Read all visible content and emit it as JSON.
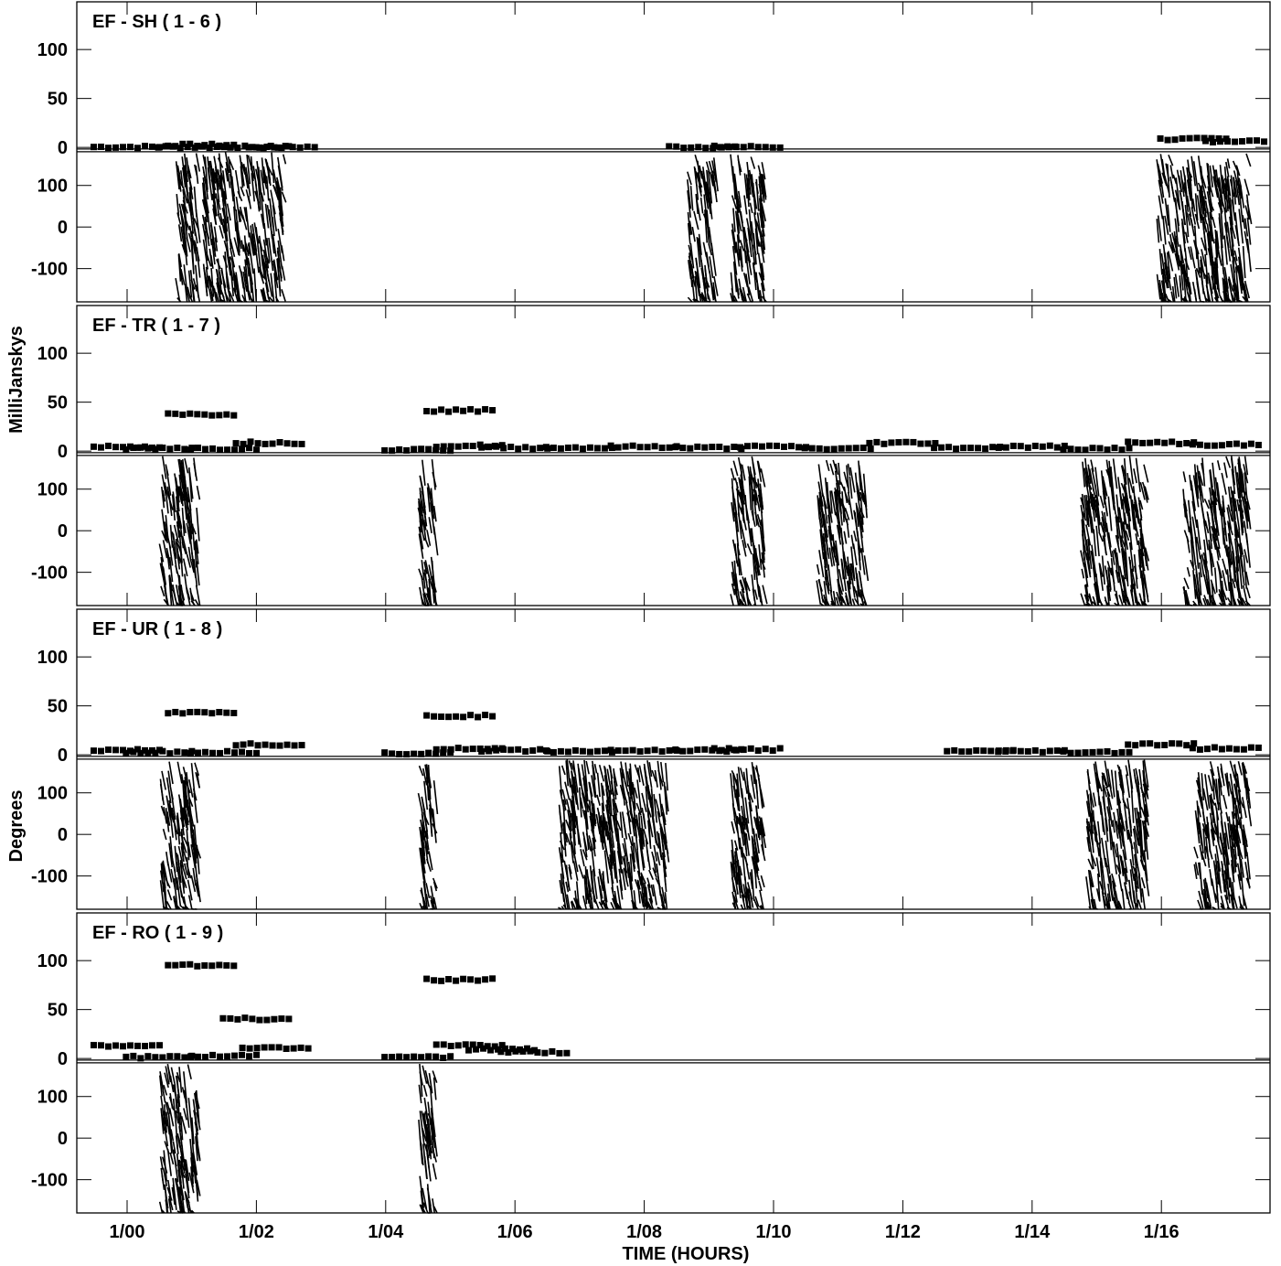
{
  "figure": {
    "ylabel_amp": "MilliJanskys",
    "ylabel_phase": "Degrees",
    "xlabel": "TIME (HOURS)",
    "x_ticks": [
      "1/00",
      "1/02",
      "1/04",
      "1/06",
      "1/08",
      "1/10",
      "1/12",
      "1/14",
      "1/16"
    ]
  },
  "chart_data": [
    {
      "type": "scatter",
      "title": "EF - SH ( 1 - 6 )",
      "amplitude": {
        "ylabel": "MilliJanskys",
        "ylim": [
          -3,
          145
        ],
        "yticks": [
          0,
          50,
          100
        ],
        "x": [
          "1/00",
          "1/01",
          "1/01.15",
          "1/02",
          "1/02.4",
          "1/08.9",
          "1/09.6",
          "1/16.5",
          "1/17.2"
        ],
        "y": [
          0,
          0,
          2,
          0,
          0,
          0,
          0,
          8,
          6
        ]
      },
      "phase": {
        "ylabel": "Degrees",
        "ylim": [
          -180,
          180
        ],
        "yticks": [
          -100,
          0,
          100
        ],
        "dense_segments": [
          [
            "0:45",
            "1:05"
          ],
          [
            "1:10",
            "2:25"
          ],
          [
            "8:40",
            "9:05"
          ],
          [
            "9:20",
            "9:50"
          ],
          [
            "15:55",
            "17:20"
          ]
        ]
      }
    },
    {
      "type": "scatter",
      "title": "EF - TR ( 1 - 7 )",
      "amplitude": {
        "ylabel": "MilliJanskys",
        "ylim": [
          -3,
          145
        ],
        "yticks": [
          0,
          50,
          100
        ],
        "x": [
          "1/00",
          "1/00.5",
          "1/01.15",
          "1/01.5",
          "1/02.2",
          "1/04.5",
          "1/05.15",
          "1/05.3",
          "1/06",
          "1/07",
          "1/08",
          "1/09",
          "1/10",
          "1/11",
          "1/12",
          "1/13",
          "1/14",
          "1/15",
          "1/16",
          "1/17"
        ],
        "y": [
          4,
          2,
          37,
          2,
          8,
          1,
          41,
          5,
          3,
          3,
          4,
          3,
          4,
          2,
          8,
          3,
          4,
          2,
          8,
          6
        ]
      },
      "phase": {
        "ylabel": "Degrees",
        "ylim": [
          -180,
          180
        ],
        "yticks": [
          -100,
          0,
          100
        ],
        "dense_segments": [
          [
            "0:30",
            "1:05"
          ],
          [
            "4:30",
            "4:45"
          ],
          [
            "9:20",
            "9:50"
          ],
          [
            "10:40",
            "11:25"
          ],
          [
            "14:45",
            "15:45"
          ],
          [
            "16:20",
            "17:20"
          ]
        ]
      }
    },
    {
      "type": "scatter",
      "title": "EF - UR ( 1 - 8 )",
      "amplitude": {
        "ylabel": "MilliJanskys",
        "ylim": [
          -3,
          145
        ],
        "yticks": [
          0,
          50,
          100
        ],
        "x": [
          "1/00",
          "1/00.5",
          "1/01.15",
          "1/01.5",
          "1/02.2",
          "1/04.5",
          "1/05.15",
          "1/05.3",
          "1/06",
          "1/07",
          "1/08",
          "1/09",
          "1/09.6",
          "1/13.2",
          "1/14",
          "1/15",
          "1/16",
          "1/17"
        ],
        "y": [
          4,
          2,
          42,
          2,
          10,
          1,
          39,
          6,
          4,
          3,
          4,
          4,
          5,
          3,
          3,
          2,
          10,
          6
        ]
      },
      "phase": {
        "ylabel": "Degrees",
        "ylim": [
          -180,
          180
        ],
        "yticks": [
          -100,
          0,
          100
        ],
        "dense_segments": [
          [
            "0:30",
            "1:05"
          ],
          [
            "4:30",
            "4:45"
          ],
          [
            "6:40",
            "7:10"
          ],
          [
            "7:10",
            "8:20"
          ],
          [
            "9:20",
            "9:50"
          ],
          [
            "14:50",
            "15:45"
          ],
          [
            "16:30",
            "17:20"
          ]
        ]
      }
    },
    {
      "type": "scatter",
      "title": "EF - RO ( 1 - 9 )",
      "amplitude": {
        "ylabel": "MilliJanskys",
        "ylim": [
          -3,
          145
        ],
        "yticks": [
          0,
          50,
          100
        ],
        "x": [
          "1/00",
          "1/00.5",
          "1/01.15",
          "1/01.5",
          "1/02",
          "1/02.3",
          "1/04.5",
          "1/05.15",
          "1/05.3",
          "1/05.8",
          "1/06.3"
        ],
        "y": [
          12,
          1,
          95,
          2,
          40,
          10,
          1,
          80,
          13,
          9,
          6
        ]
      },
      "phase": {
        "ylabel": "Degrees",
        "ylim": [
          -180,
          180
        ],
        "yticks": [
          -100,
          0,
          100
        ],
        "dense_segments": [
          [
            "0:30",
            "1:05"
          ],
          [
            "4:30",
            "4:45"
          ]
        ]
      }
    }
  ]
}
